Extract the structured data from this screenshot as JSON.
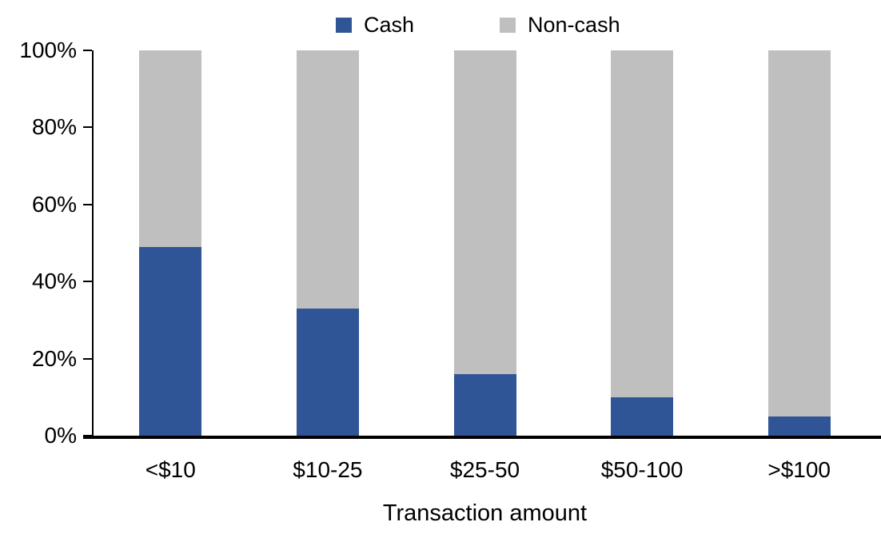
{
  "chart_data": {
    "type": "bar",
    "stacked": true,
    "stack_mode": "percent",
    "title": "",
    "xlabel": "Transaction amount",
    "ylabel": "",
    "categories": [
      "<$10",
      "$10-25",
      "$25-50",
      "$50-100",
      ">$100"
    ],
    "series": [
      {
        "name": "Cash",
        "color": "#2F5596",
        "values": [
          49,
          33,
          16,
          10,
          5
        ]
      },
      {
        "name": "Non-cash",
        "color": "#BFBFBF",
        "values": [
          51,
          67,
          84,
          90,
          95
        ]
      }
    ],
    "ylim": [
      0,
      100
    ],
    "yticks": [
      "0%",
      "20%",
      "40%",
      "60%",
      "80%",
      "100%"
    ],
    "grid": false,
    "legend_position": "top",
    "axis_color": "#000000",
    "text_color": "#000000"
  }
}
